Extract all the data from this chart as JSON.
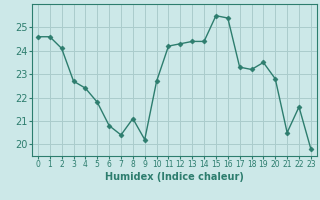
{
  "x": [
    0,
    1,
    2,
    3,
    4,
    5,
    6,
    7,
    8,
    9,
    10,
    11,
    12,
    13,
    14,
    15,
    16,
    17,
    18,
    19,
    20,
    21,
    22,
    23
  ],
  "y": [
    24.6,
    24.6,
    24.1,
    22.7,
    22.4,
    21.8,
    20.8,
    20.4,
    21.1,
    20.2,
    22.7,
    24.2,
    24.3,
    24.4,
    24.4,
    25.5,
    25.4,
    23.3,
    23.2,
    23.5,
    22.8,
    20.5,
    21.6,
    19.8
  ],
  "line_color": "#2d7d6e",
  "marker": "D",
  "marker_size": 2.5,
  "bg_color": "#cce8e8",
  "grid_color": "#aacccc",
  "xlabel": "Humidex (Indice chaleur)",
  "ylim": [
    19.5,
    26.0
  ],
  "yticks": [
    20,
    21,
    22,
    23,
    24,
    25
  ],
  "xlabel_fontsize": 7,
  "tick_fontsize": 7,
  "line_width": 1.0
}
